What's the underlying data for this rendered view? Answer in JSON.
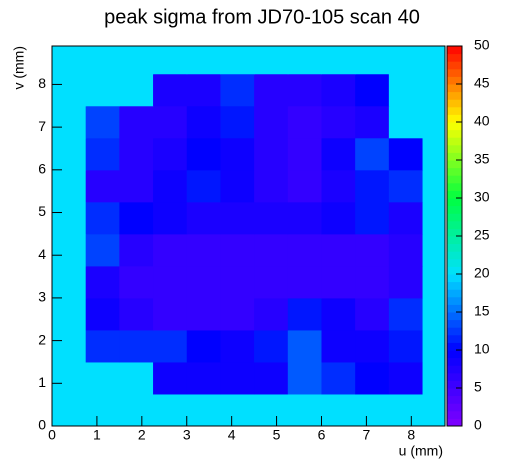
{
  "chart_data": {
    "type": "heatmap",
    "title": "peak sigma from JD70-105 scan 40",
    "x_label": "u (mm)",
    "y_label": "v (mm)",
    "x_bins": [
      0,
      0.75,
      1.5,
      2.25,
      3,
      3.75,
      4.5,
      5.25,
      6,
      6.75,
      7.5,
      8.25,
      8.75
    ],
    "y_bins": [
      0,
      0.75,
      1.5,
      2.25,
      3,
      3.75,
      4.5,
      5.25,
      6,
      6.75,
      7.5,
      8.25,
      8.9
    ],
    "z": [
      [
        20,
        20,
        20,
        20,
        20,
        20,
        20,
        20,
        20,
        20,
        20,
        20
      ],
      [
        20,
        20,
        20,
        9,
        9,
        9,
        9,
        14,
        12,
        10,
        9,
        20
      ],
      [
        20,
        12,
        12,
        12,
        10,
        9,
        11,
        14,
        9,
        9,
        11,
        20
      ],
      [
        20,
        9,
        7,
        6,
        6,
        6,
        7,
        11,
        9,
        7,
        12,
        20
      ],
      [
        20,
        8,
        6,
        6,
        6,
        6,
        6,
        6,
        6,
        6,
        7,
        20
      ],
      [
        20,
        13,
        7,
        6,
        6,
        6,
        6,
        6,
        6,
        6,
        7,
        20
      ],
      [
        20,
        12,
        10,
        9,
        8,
        8,
        8,
        8,
        9,
        11,
        8,
        20
      ],
      [
        20,
        7,
        7,
        9,
        11,
        9,
        7,
        6,
        8,
        11,
        12,
        20
      ],
      [
        20,
        12,
        7,
        8,
        10,
        9,
        7,
        6,
        9,
        13,
        10,
        20
      ],
      [
        20,
        13,
        7,
        7,
        9,
        11,
        7,
        6,
        7,
        8,
        20,
        20
      ],
      [
        20,
        20,
        20,
        8,
        8,
        12,
        7,
        7,
        8,
        10,
        20,
        20
      ],
      [
        20,
        20,
        20,
        20,
        20,
        20,
        20,
        20,
        20,
        20,
        20,
        20
      ]
    ],
    "xlim": [
      0,
      8.75
    ],
    "ylim": [
      0,
      8.9
    ],
    "zlim": [
      0,
      50
    ],
    "xticks": [
      0,
      1,
      2,
      3,
      4,
      5,
      6,
      7,
      8
    ],
    "yticks": [
      0,
      1,
      2,
      3,
      4,
      5,
      6,
      7,
      8
    ],
    "zticks": [
      0,
      5,
      10,
      15,
      20,
      25,
      30,
      35,
      40,
      45,
      50
    ],
    "colormap": [
      "#8000ff",
      "#0000ff",
      "#00e0ff",
      "#00ff40",
      "#ffff00",
      "#ff0000"
    ]
  }
}
